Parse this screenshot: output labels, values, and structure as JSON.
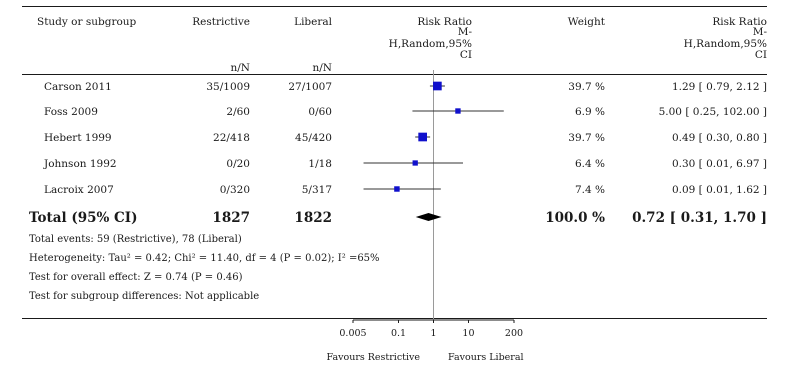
{
  "header": {
    "study": "Study or subgroup",
    "group1": "Restrictive",
    "group2": "Liberal",
    "group1_sub": "n/N",
    "group2_sub": "n/N",
    "rr_lines": [
      "Risk Ratio",
      "M-",
      "H,Random,95%",
      "CI"
    ],
    "weight": "Weight",
    "rr2_lines": [
      "Risk Ratio",
      "M-",
      "H,Random,95%",
      "CI"
    ]
  },
  "studies": [
    {
      "name": "Carson 2011",
      "g1": "35/1009",
      "g2": "27/1007",
      "weight": "39.7 %",
      "ci_text": "1.29 [ 0.79, 2.12 ]"
    },
    {
      "name": "Foss 2009",
      "g1": "2/60",
      "g2": "0/60",
      "weight": "6.9 %",
      "ci_text": "5.00 [ 0.25, 102.00 ]"
    },
    {
      "name": "Hebert 1999",
      "g1": "22/418",
      "g2": "45/420",
      "weight": "39.7 %",
      "ci_text": "0.49 [ 0.30, 0.80 ]"
    },
    {
      "name": "Johnson 1992",
      "g1": "0/20",
      "g2": "1/18",
      "weight": "6.4 %",
      "ci_text": "0.30 [ 0.01, 6.97 ]"
    },
    {
      "name": "Lacroix 2007",
      "g1": "0/320",
      "g2": "5/317",
      "weight": "7.4 %",
      "ci_text": "0.09 [ 0.01, 1.62 ]"
    }
  ],
  "total": {
    "label": "Total (95% CI)",
    "g1": "1827",
    "g2": "1822",
    "weight": "100.0 %",
    "ci_text": "0.72 [ 0.31, 1.70 ]"
  },
  "notes": {
    "events": "Total events: 59 (Restrictive), 78 (Liberal)",
    "heterogeneity": "Heterogeneity: Tau² = 0.42; Chi² = 11.40, df = 4 (P = 0.02); I² =65%",
    "overall": "Test for overall effect: Z = 0.74 (P = 0.46)",
    "subgroup": "Test for subgroup differences: Not applicable"
  },
  "axis": {
    "left_label": "Favours Restrictive",
    "right_label": "Favours Liberal"
  },
  "chart_data": {
    "type": "forest",
    "scale": "log",
    "xlim": [
      0.005,
      200
    ],
    "ticks": [
      {
        "value": 0.005,
        "label": "0.005"
      },
      {
        "value": 0.1,
        "label": "0.1"
      },
      {
        "value": 1,
        "label": "1"
      },
      {
        "value": 10,
        "label": "10"
      },
      {
        "value": 200,
        "label": "200"
      }
    ],
    "studies": [
      {
        "name": "Carson 2011",
        "rr": 1.29,
        "lo": 0.79,
        "hi": 2.12,
        "weight": 39.7
      },
      {
        "name": "Foss 2009",
        "rr": 5.0,
        "lo": 0.25,
        "hi": 102.0,
        "weight": 6.9
      },
      {
        "name": "Hebert 1999",
        "rr": 0.49,
        "lo": 0.3,
        "hi": 0.8,
        "weight": 39.7
      },
      {
        "name": "Johnson 1992",
        "rr": 0.3,
        "lo": 0.01,
        "hi": 6.97,
        "weight": 6.4
      },
      {
        "name": "Lacroix 2007",
        "rr": 0.09,
        "lo": 0.01,
        "hi": 1.62,
        "weight": 7.4
      }
    ],
    "pooled": {
      "rr": 0.72,
      "lo": 0.31,
      "hi": 1.7,
      "weight": 100.0
    },
    "colors": {
      "marker": "#1010cc",
      "line": "#333333",
      "diamond": "#000000"
    }
  }
}
